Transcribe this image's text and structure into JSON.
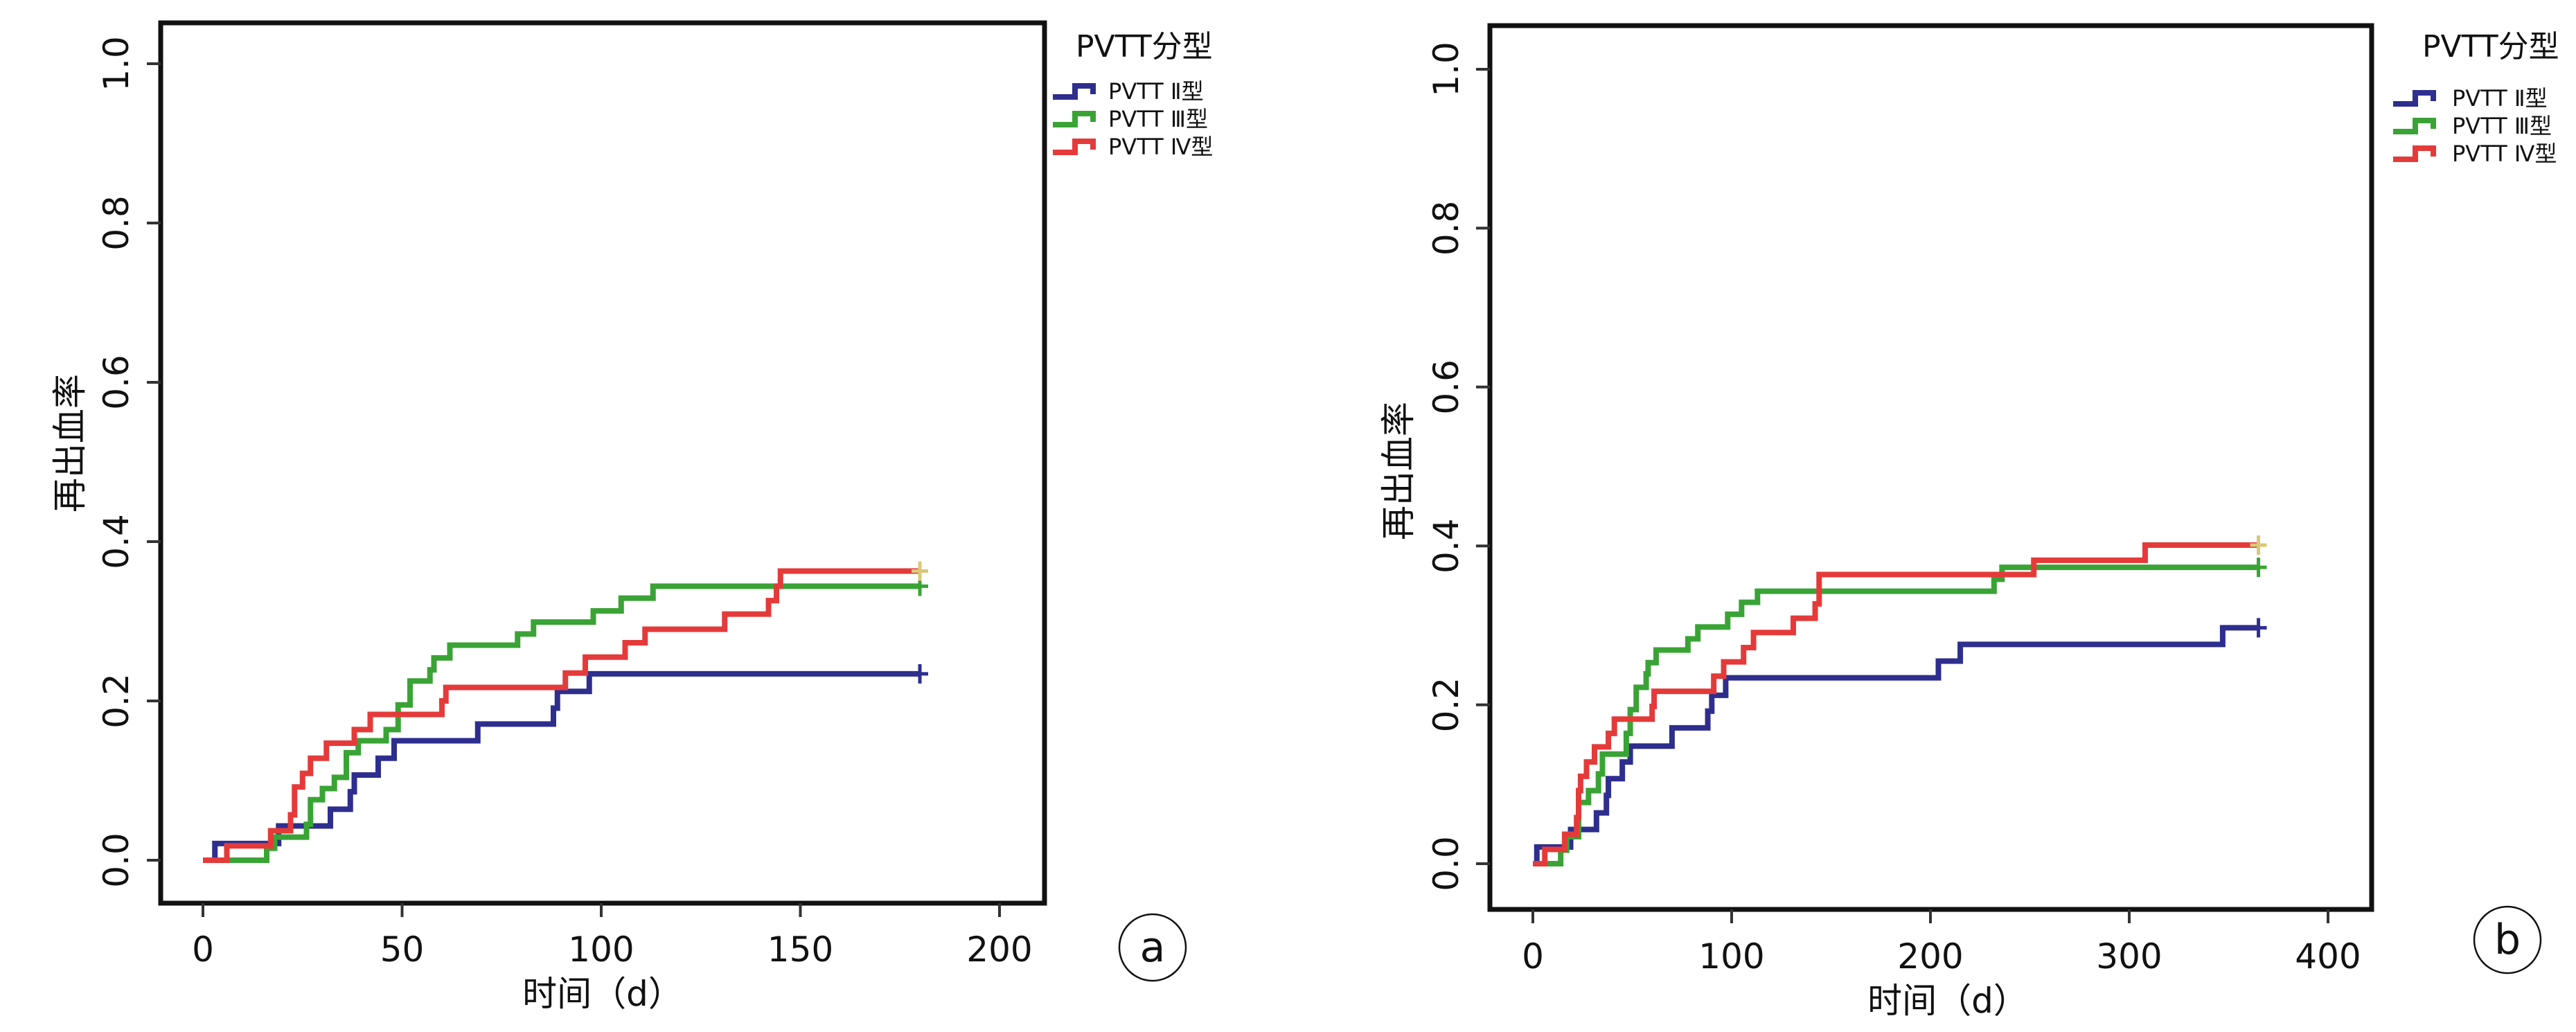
{
  "chart_data": [
    {
      "type": "line",
      "subtype": "kaplan-meier-cumulative-incidence",
      "panel_label": "a",
      "title": "",
      "xlabel": "时间（d）",
      "ylabel": "再出血率",
      "xlim": [
        -10,
        210
      ],
      "ylim": [
        -0.05,
        1.05
      ],
      "xticks": [
        0,
        50,
        100,
        150,
        200
      ],
      "xtick_labels": [
        "0",
        "50",
        "100",
        "150",
        "200"
      ],
      "yticks": [
        0.0,
        0.2,
        0.4,
        0.6,
        0.8,
        1.0
      ],
      "ytick_labels": [
        "0.0",
        "0.2",
        "0.4",
        "0.6",
        "0.8",
        "1.0"
      ],
      "grid": false,
      "legend": {
        "title": "PVTT分型",
        "placement": "outside-top-right"
      },
      "series": [
        {
          "name": "PVTT Ⅱ型",
          "color": "#2e2e8f",
          "censor_color": "#2e2e8f",
          "steps": [
            [
              0,
              0
            ],
            [
              3,
              0.021
            ],
            [
              19,
              0.043
            ],
            [
              32,
              0.064
            ],
            [
              37,
              0.086
            ],
            [
              38,
              0.107
            ],
            [
              44,
              0.128
            ],
            [
              48,
              0.15
            ],
            [
              69,
              0.171
            ],
            [
              88,
              0.191
            ],
            [
              89,
              0.212
            ],
            [
              97,
              0.234
            ]
          ],
          "end": 180
        },
        {
          "name": "PVTT Ⅲ型",
          "color": "#3aa336",
          "censor_color": "#3aa336",
          "steps": [
            [
              0,
              0
            ],
            [
              16,
              0.015
            ],
            [
              18,
              0.029
            ],
            [
              26,
              0.045
            ],
            [
              27,
              0.076
            ],
            [
              30,
              0.09
            ],
            [
              33,
              0.104
            ],
            [
              36,
              0.135
            ],
            [
              39,
              0.15
            ],
            [
              46,
              0.164
            ],
            [
              49,
              0.195
            ],
            [
              52,
              0.225
            ],
            [
              57,
              0.239
            ],
            [
              58,
              0.254
            ],
            [
              62,
              0.27
            ],
            [
              79,
              0.284
            ],
            [
              83,
              0.299
            ],
            [
              98,
              0.313
            ],
            [
              105,
              0.329
            ],
            [
              113,
              0.344
            ]
          ],
          "end": 180
        },
        {
          "name": "PVTT Ⅳ型",
          "color": "#e53a3a",
          "censor_color": "#d9c87a",
          "steps": [
            [
              0,
              0
            ],
            [
              6,
              0.018
            ],
            [
              17,
              0.037
            ],
            [
              22,
              0.057
            ],
            [
              23,
              0.092
            ],
            [
              25,
              0.109
            ],
            [
              27,
              0.128
            ],
            [
              31,
              0.147
            ],
            [
              38,
              0.164
            ],
            [
              42,
              0.183
            ],
            [
              60,
              0.2
            ],
            [
              61,
              0.217
            ],
            [
              91,
              0.235
            ],
            [
              96,
              0.255
            ],
            [
              106,
              0.273
            ],
            [
              111,
              0.29
            ],
            [
              131,
              0.309
            ],
            [
              142,
              0.326
            ],
            [
              144,
              0.344
            ],
            [
              145,
              0.363
            ]
          ],
          "end": 180
        }
      ]
    },
    {
      "type": "line",
      "subtype": "kaplan-meier-cumulative-incidence",
      "panel_label": "b",
      "title": "",
      "xlabel": "时间（d）",
      "ylabel": "再出血率",
      "xlim": [
        -20,
        420
      ],
      "ylim": [
        -0.05,
        1.05
      ],
      "xticks": [
        0,
        100,
        200,
        300,
        400
      ],
      "xtick_labels": [
        "0",
        "100",
        "200",
        "300",
        "400"
      ],
      "yticks": [
        0.0,
        0.2,
        0.4,
        0.6,
        0.8,
        1.0
      ],
      "ytick_labels": [
        "0.0",
        "0.2",
        "0.4",
        "0.6",
        "0.8",
        "1.0"
      ],
      "grid": false,
      "legend": {
        "title": "PVTT分型",
        "placement": "outside-top-right"
      },
      "series": [
        {
          "name": "PVTT Ⅱ型",
          "color": "#2e2e8f",
          "censor_color": "#2e2e8f",
          "steps": [
            [
              0,
              0
            ],
            [
              2,
              0.021
            ],
            [
              19,
              0.043
            ],
            [
              32,
              0.064
            ],
            [
              37,
              0.086
            ],
            [
              38,
              0.107
            ],
            [
              45,
              0.128
            ],
            [
              49,
              0.148
            ],
            [
              70,
              0.171
            ],
            [
              88,
              0.192
            ],
            [
              90,
              0.212
            ],
            [
              97,
              0.234
            ],
            [
              204,
              0.255
            ],
            [
              215,
              0.276
            ],
            [
              347,
              0.297
            ]
          ],
          "end": 365
        },
        {
          "name": "PVTT Ⅲ型",
          "color": "#3aa336",
          "censor_color": "#3aa336",
          "steps": [
            [
              0,
              0
            ],
            [
              14,
              0.017
            ],
            [
              17,
              0.034
            ],
            [
              23,
              0.077
            ],
            [
              28,
              0.092
            ],
            [
              33,
              0.113
            ],
            [
              35,
              0.138
            ],
            [
              47,
              0.164
            ],
            [
              49,
              0.194
            ],
            [
              52,
              0.222
            ],
            [
              57,
              0.239
            ],
            [
              58,
              0.253
            ],
            [
              62,
              0.269
            ],
            [
              78,
              0.283
            ],
            [
              83,
              0.298
            ],
            [
              98,
              0.314
            ],
            [
              105,
              0.329
            ],
            [
              113,
              0.343
            ],
            [
              232,
              0.358
            ],
            [
              236,
              0.373
            ]
          ],
          "end": 365
        },
        {
          "name": "PVTT Ⅳ型",
          "color": "#e53a3a",
          "censor_color": "#d9c87a",
          "steps": [
            [
              0,
              0
            ],
            [
              6,
              0.018
            ],
            [
              16,
              0.037
            ],
            [
              22,
              0.058
            ],
            [
              23,
              0.092
            ],
            [
              24,
              0.11
            ],
            [
              27,
              0.128
            ],
            [
              31,
              0.147
            ],
            [
              38,
              0.164
            ],
            [
              41,
              0.182
            ],
            [
              60,
              0.198
            ],
            [
              61,
              0.217
            ],
            [
              91,
              0.236
            ],
            [
              96,
              0.254
            ],
            [
              106,
              0.272
            ],
            [
              111,
              0.291
            ],
            [
              131,
              0.309
            ],
            [
              142,
              0.327
            ],
            [
              144,
              0.364
            ],
            [
              252,
              0.382
            ],
            [
              308,
              0.401
            ]
          ],
          "end": 365
        }
      ]
    }
  ]
}
